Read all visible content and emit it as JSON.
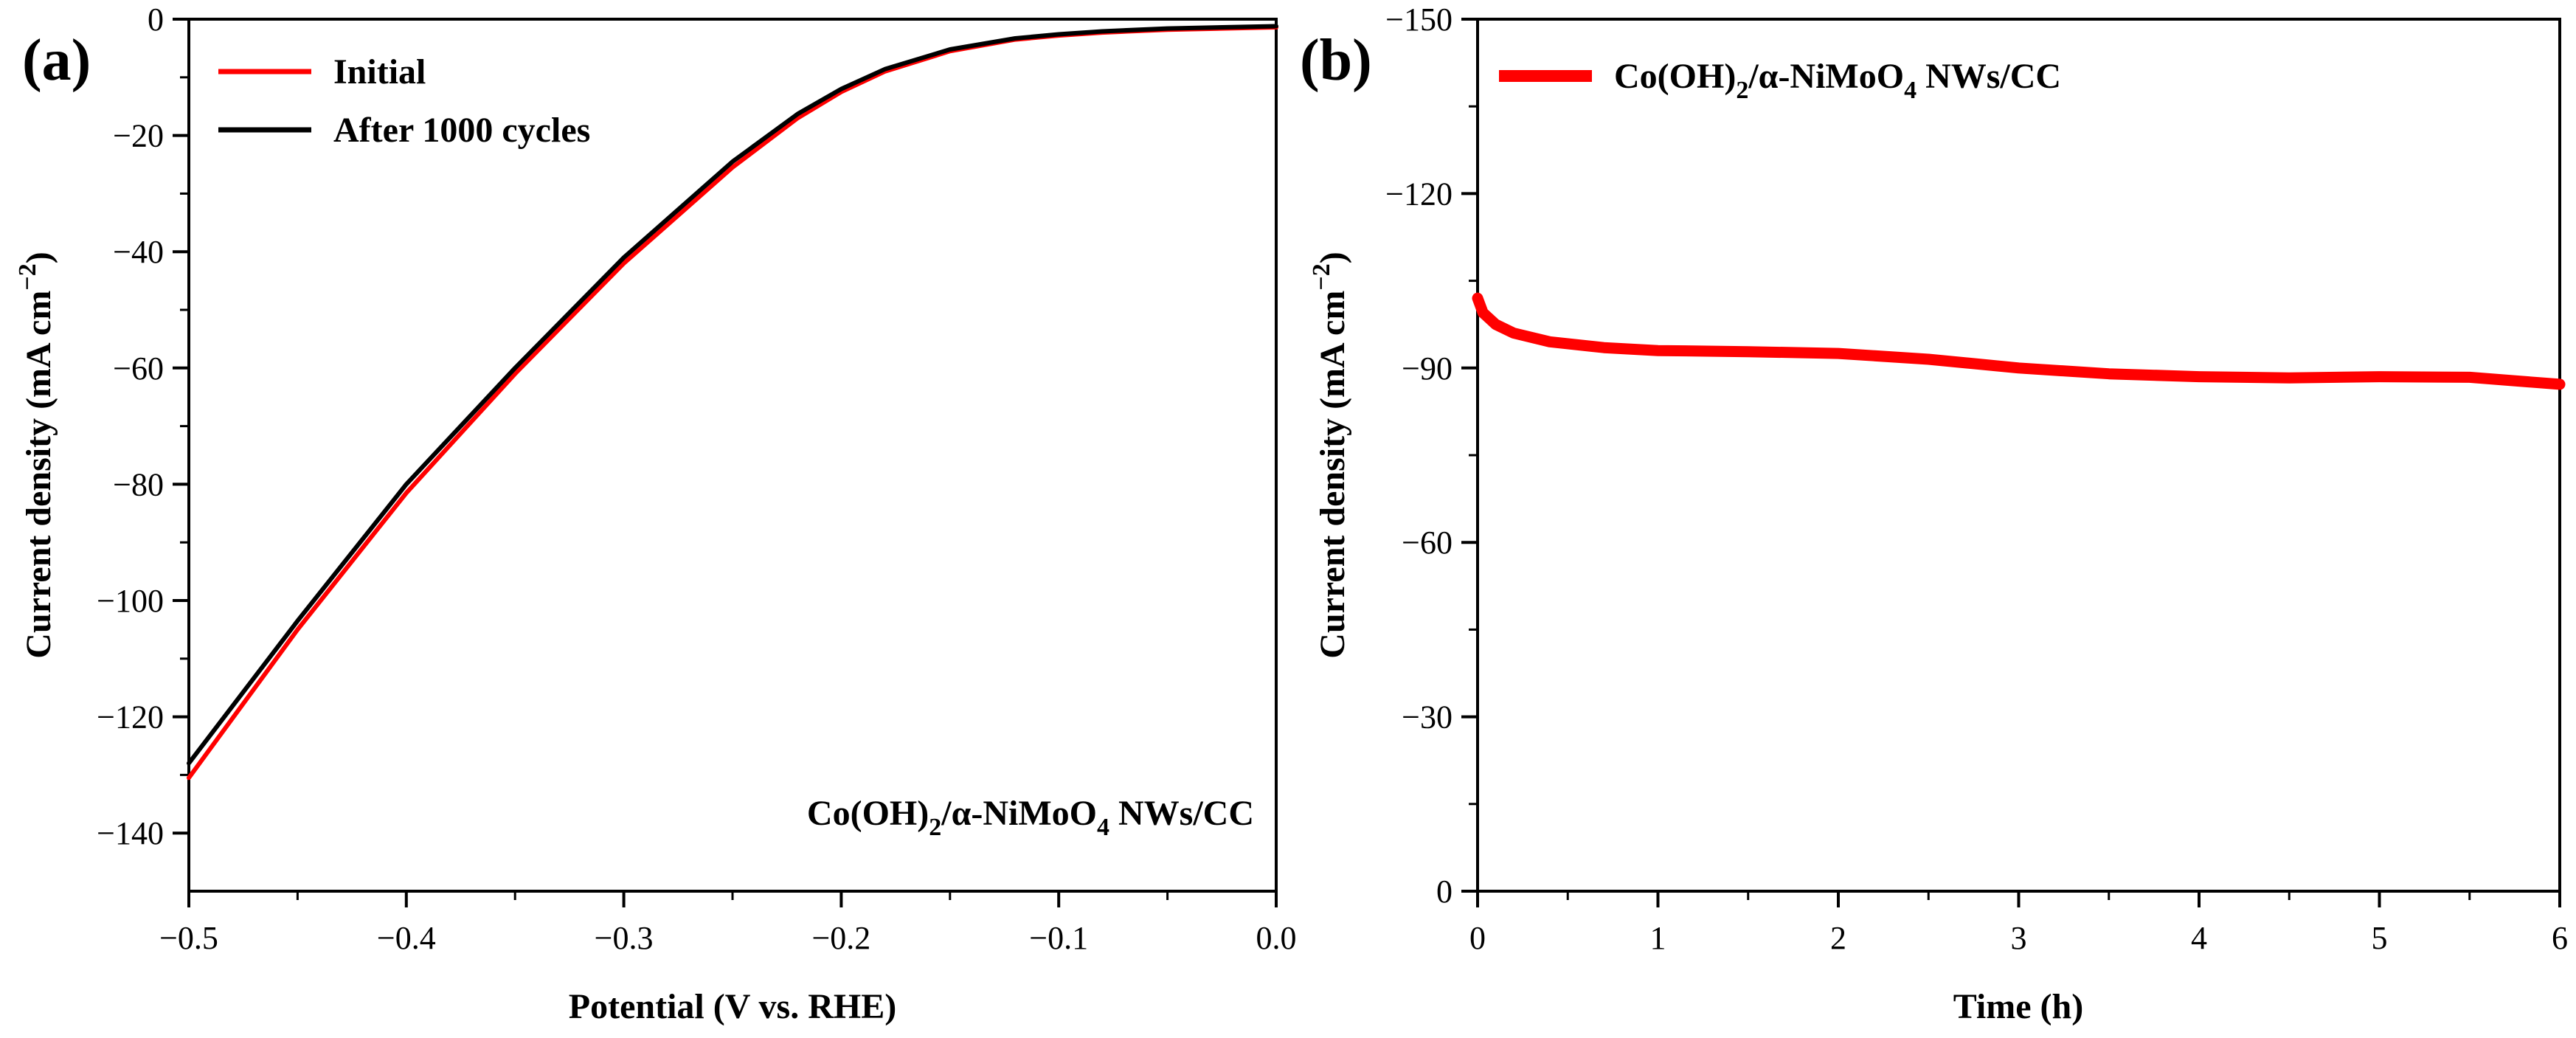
{
  "colors": {
    "initial": "#ff0000",
    "after": "#000000",
    "stability": "#ff0000",
    "axis": "#000000"
  },
  "chart_data": [
    {
      "panel_label": "(a)",
      "type": "line",
      "xlabel": "Potential (V vs. RHE)",
      "ylabel": {
        "main": "Current density (mA cm",
        "sup": "−2",
        "close": ")"
      },
      "xlim": [
        -0.5,
        0.0
      ],
      "ylim": [
        -150,
        0
      ],
      "xticks": [
        -0.5,
        -0.4,
        -0.3,
        -0.2,
        -0.1,
        0.0
      ],
      "xtick_labels": [
        "−0.5",
        "−0.4",
        "−0.3",
        "−0.2",
        "−0.1",
        "0.0"
      ],
      "yticks": [
        0,
        -20,
        -40,
        -60,
        -80,
        -100,
        -120,
        -140
      ],
      "ytick_labels": [
        "0",
        "−20",
        "−40",
        "−60",
        "−80",
        "−100",
        "−120",
        "−140"
      ],
      "legend_position": "top-left",
      "annotation": {
        "pre": "Co(OH)",
        "sub1": "2",
        "mid": "/α-NiMoO",
        "sub2": "4",
        "post": " NWs/CC"
      },
      "series": [
        {
          "name": "Initial",
          "x": [
            -0.5,
            -0.45,
            -0.4,
            -0.35,
            -0.3,
            -0.25,
            -0.22,
            -0.2,
            -0.18,
            -0.15,
            -0.12,
            -0.1,
            -0.08,
            -0.05,
            0.0
          ],
          "y": [
            -130.5,
            -105,
            -81.5,
            -61,
            -42,
            -25.5,
            -17,
            -12.5,
            -9,
            -5.5,
            -3.5,
            -2.8,
            -2.3,
            -1.8,
            -1.4
          ]
        },
        {
          "name": "After 1000 cycles",
          "x": [
            -0.5,
            -0.45,
            -0.4,
            -0.35,
            -0.3,
            -0.25,
            -0.22,
            -0.2,
            -0.18,
            -0.15,
            -0.12,
            -0.1,
            -0.08,
            -0.05,
            0.0
          ],
          "y": [
            -128,
            -103.5,
            -80,
            -60,
            -41,
            -24.5,
            -16.3,
            -12,
            -8.6,
            -5.2,
            -3.3,
            -2.6,
            -2.1,
            -1.6,
            -1.2
          ]
        }
      ]
    },
    {
      "panel_label": "(b)",
      "type": "line",
      "xlabel": "Time (h)",
      "ylabel": {
        "main": "Current density (mA cm",
        "sup": "−2",
        "close": ")"
      },
      "xlim": [
        0,
        6
      ],
      "ylim": [
        0,
        -150
      ],
      "xticks": [
        0,
        1,
        2,
        3,
        4,
        5,
        6
      ],
      "xtick_labels": [
        "0",
        "1",
        "2",
        "3",
        "4",
        "5",
        "6"
      ],
      "yticks": [
        0,
        -30,
        -60,
        -90,
        -120,
        -150
      ],
      "ytick_labels": [
        "0",
        "−30",
        "−60",
        "−90",
        "−120",
        "−150"
      ],
      "legend_position": "top-left",
      "series": [
        {
          "name": {
            "pre": "Co(OH)",
            "sub1": "2",
            "mid": "/α-NiMoO",
            "sub2": "4",
            "post": " NWs/CC"
          },
          "x": [
            0,
            0.03,
            0.1,
            0.2,
            0.4,
            0.7,
            1.0,
            1.5,
            2.0,
            2.5,
            3.0,
            3.5,
            4.0,
            4.5,
            5.0,
            5.5,
            6.0
          ],
          "y": [
            -102,
            -99.5,
            -97.5,
            -96,
            -94.5,
            -93.5,
            -93,
            -92.8,
            -92.5,
            -91.5,
            -90,
            -89,
            -88.5,
            -88.3,
            -88.5,
            -88.4,
            -87.2
          ]
        }
      ]
    }
  ]
}
